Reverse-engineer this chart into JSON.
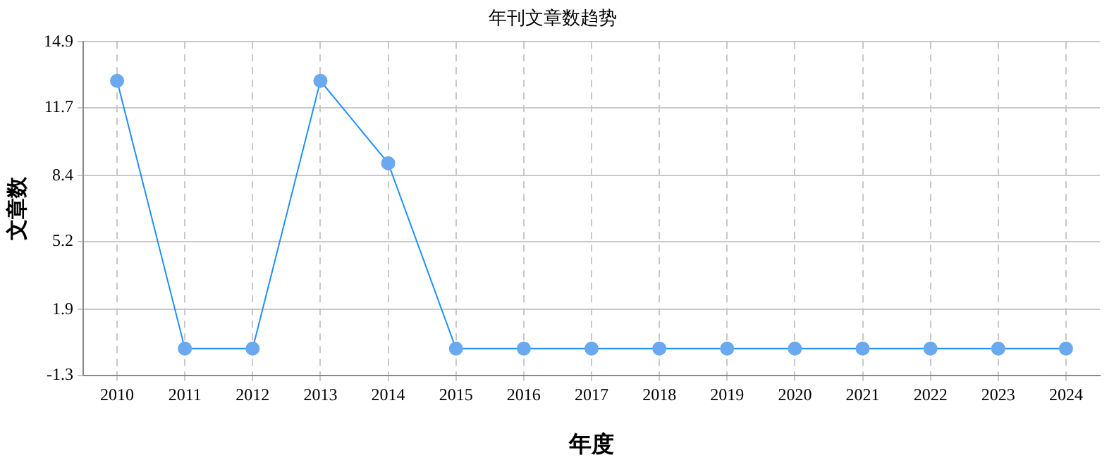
{
  "chart_data": {
    "type": "line",
    "title": "年刊文章数趋势",
    "xlabel": "年度",
    "ylabel": "文章数",
    "categories": [
      "2010",
      "2011",
      "2012",
      "2013",
      "2014",
      "2015",
      "2016",
      "2017",
      "2018",
      "2019",
      "2020",
      "2021",
      "2022",
      "2023",
      "2024"
    ],
    "series": [
      {
        "color": "#1e90ff",
        "values": [
          13,
          0,
          0,
          13,
          9,
          0,
          0,
          0,
          0,
          0,
          0,
          0,
          0,
          0,
          0
        ]
      }
    ],
    "ylim": [
      -1.3,
      14.9
    ],
    "yticks": [
      -1.3,
      1.9,
      5.2,
      8.4,
      11.7,
      14.9
    ],
    "grid": true,
    "legend": false,
    "marker": "circle",
    "line_style": "solid"
  }
}
